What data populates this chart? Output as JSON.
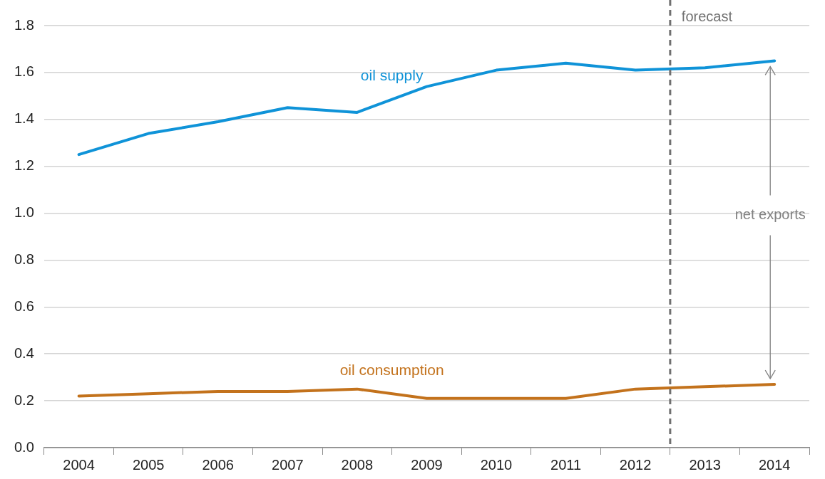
{
  "chart_data": {
    "type": "line",
    "x": [
      2004,
      2005,
      2006,
      2007,
      2008,
      2009,
      2010,
      2011,
      2012,
      2013,
      2014
    ],
    "series": [
      {
        "name": "oil supply",
        "color": "#0f93d8",
        "values": [
          1.25,
          1.34,
          1.39,
          1.45,
          1.43,
          1.54,
          1.61,
          1.64,
          1.61,
          1.62,
          1.65
        ]
      },
      {
        "name": "oil consumption",
        "color": "#c3721c",
        "values": [
          0.22,
          0.23,
          0.24,
          0.24,
          0.25,
          0.21,
          0.21,
          0.21,
          0.25,
          0.26,
          0.27
        ]
      }
    ],
    "xlim": [
      2003.5,
      2014.5
    ],
    "xticks": [
      {
        "value": 2003.5,
        "label": null
      },
      2004,
      {
        "value": 2004.5,
        "label": null
      },
      2005,
      {
        "value": 2005.5,
        "label": null
      },
      2006,
      {
        "value": 2006.5,
        "label": null
      },
      2007,
      {
        "value": 2007.5,
        "label": null
      },
      2008,
      {
        "value": 2008.5,
        "label": null
      },
      2009,
      {
        "value": 2009.5,
        "label": null
      },
      2010,
      {
        "value": 2010.5,
        "label": null
      },
      2011,
      {
        "value": 2011.5,
        "label": null
      },
      2012,
      {
        "value": 2012.5,
        "label": null
      },
      2013,
      {
        "value": 2013.5,
        "label": null
      },
      2014,
      {
        "value": 2014.5,
        "label": null
      }
    ],
    "ylim": [
      0,
      1.8
    ],
    "yticks": [
      {
        "value": 0,
        "label": "0.0"
      },
      {
        "value": 0.2,
        "label": "0.2"
      },
      {
        "value": 0.4,
        "label": "0.4"
      },
      {
        "value": 0.6,
        "label": "0.6"
      },
      {
        "value": 0.8,
        "label": "0.8"
      },
      {
        "value": 1,
        "label": "1.0"
      },
      {
        "value": 1.2,
        "label": "1.2"
      },
      {
        "value": 1.4,
        "label": "1.4"
      },
      {
        "value": 1.6,
        "label": "1.6"
      },
      {
        "value": 1.8,
        "label": "1.8"
      }
    ],
    "grid": "y",
    "legend": false,
    "marker": "none",
    "line_style": "solid",
    "ref_lines": [
      {
        "axis": "x",
        "value": 2012.5,
        "label": "forecast",
        "color": "#707070",
        "line_style": "dashed"
      }
    ],
    "annotations": [
      "net exports"
    ]
  }
}
